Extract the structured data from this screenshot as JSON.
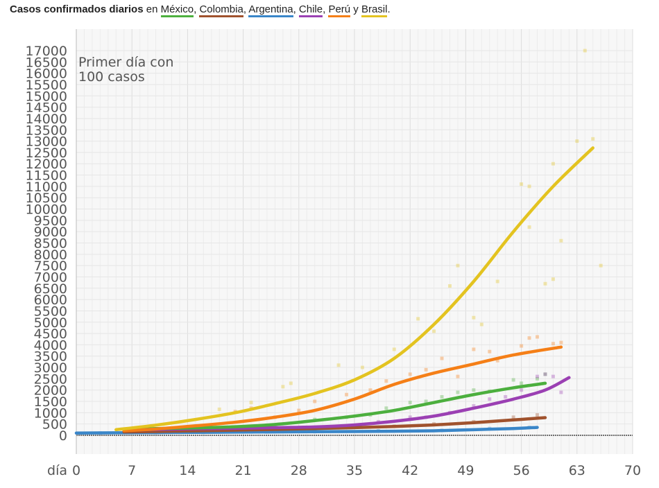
{
  "title": {
    "bold": "Casos confirmados diarios",
    "en": "en",
    "y": "y",
    "countries": [
      {
        "name": "México",
        "color": "#4caf3e"
      },
      {
        "name": "Colombia",
        "color": "#a0522d"
      },
      {
        "name": "Argentina",
        "color": "#3a86c8"
      },
      {
        "name": "Chile",
        "color": "#9b40b3"
      },
      {
        "name": "Perú",
        "color": "#f57f17"
      },
      {
        "name": "Brasil",
        "color": "#e3c320"
      }
    ]
  },
  "chart_data": {
    "type": "line",
    "annotation": "Primer día con\n100 casos",
    "xlabel_prefix": "día",
    "xlim": [
      0,
      70
    ],
    "ylim": [
      0,
      17000
    ],
    "x_ticks": [
      0,
      7,
      14,
      21,
      28,
      35,
      42,
      49,
      56,
      63,
      70
    ],
    "y_ticks": [
      0,
      500,
      1000,
      1500,
      2000,
      2500,
      3000,
      3500,
      4000,
      4500,
      5000,
      5500,
      6000,
      6500,
      7000,
      7500,
      8000,
      8500,
      9000,
      9500,
      10000,
      10500,
      11000,
      11500,
      12000,
      12500,
      13000,
      13500,
      14000,
      14500,
      15000,
      15500,
      16000,
      16500,
      17000
    ],
    "series": [
      {
        "name": "Brasil",
        "color": "#e3c320",
        "x": [
          5,
          10,
          15,
          20,
          25,
          30,
          35,
          40,
          45,
          50,
          55,
          60,
          65
        ],
        "y": [
          250,
          450,
          700,
          1000,
          1400,
          1850,
          2450,
          3400,
          4900,
          6800,
          9000,
          11000,
          12700
        ]
      },
      {
        "name": "Perú",
        "color": "#f57f17",
        "x": [
          6,
          10,
          15,
          20,
          25,
          30,
          35,
          40,
          45,
          50,
          55,
          61
        ],
        "y": [
          200,
          280,
          420,
          580,
          800,
          1100,
          1600,
          2250,
          2750,
          3150,
          3550,
          3900
        ]
      },
      {
        "name": "México",
        "color": "#4caf3e",
        "x": [
          6,
          10,
          15,
          20,
          25,
          30,
          35,
          40,
          45,
          50,
          55,
          59
        ],
        "y": [
          250,
          300,
          330,
          380,
          480,
          650,
          850,
          1100,
          1450,
          1800,
          2100,
          2300
        ]
      },
      {
        "name": "Chile",
        "color": "#9b40b3",
        "x": [
          6,
          10,
          15,
          20,
          25,
          30,
          35,
          40,
          45,
          50,
          55,
          59,
          62
        ],
        "y": [
          220,
          260,
          290,
          310,
          340,
          370,
          460,
          620,
          850,
          1200,
          1600,
          2000,
          2550
        ]
      },
      {
        "name": "Colombia",
        "color": "#a0522d",
        "x": [
          6,
          10,
          15,
          20,
          25,
          30,
          35,
          40,
          45,
          50,
          55,
          59
        ],
        "y": [
          150,
          170,
          200,
          230,
          260,
          300,
          340,
          390,
          460,
          560,
          680,
          780
        ]
      },
      {
        "name": "Argentina",
        "color": "#3a86c8",
        "x": [
          0,
          5,
          10,
          15,
          20,
          25,
          30,
          35,
          40,
          45,
          50,
          55,
          58
        ],
        "y": [
          100,
          110,
          120,
          130,
          140,
          150,
          160,
          170,
          180,
          200,
          250,
          300,
          350
        ]
      }
    ],
    "scatter": [
      {
        "color": "#e3c320",
        "points": [
          [
            18,
            1150
          ],
          [
            22,
            1450
          ],
          [
            26,
            2150
          ],
          [
            27,
            2300
          ],
          [
            33,
            3100
          ],
          [
            36,
            3000
          ],
          [
            40,
            3800
          ],
          [
            43,
            5150
          ],
          [
            45,
            4600
          ],
          [
            47,
            6600
          ],
          [
            48,
            7500
          ],
          [
            50,
            5200
          ],
          [
            51,
            4900
          ],
          [
            53,
            6800
          ],
          [
            56,
            11100
          ],
          [
            57,
            11000
          ],
          [
            57,
            9200
          ],
          [
            59,
            6700
          ],
          [
            60,
            6900
          ],
          [
            60,
            12000
          ],
          [
            61,
            8600
          ],
          [
            63,
            13000
          ],
          [
            64,
            17000
          ],
          [
            65,
            13100
          ],
          [
            66,
            7500
          ]
        ]
      },
      {
        "color": "#f57f17",
        "points": [
          [
            20,
            1050
          ],
          [
            22,
            1200
          ],
          [
            25,
            800
          ],
          [
            28,
            1100
          ],
          [
            30,
            1500
          ],
          [
            34,
            1800
          ],
          [
            37,
            2000
          ],
          [
            39,
            2400
          ],
          [
            42,
            2700
          ],
          [
            44,
            2900
          ],
          [
            46,
            3400
          ],
          [
            48,
            2600
          ],
          [
            50,
            3800
          ],
          [
            52,
            3700
          ],
          [
            53,
            3300
          ],
          [
            56,
            3950
          ],
          [
            57,
            4300
          ],
          [
            58,
            4350
          ],
          [
            60,
            4050
          ],
          [
            61,
            4100
          ]
        ]
      },
      {
        "color": "#4caf3e",
        "points": [
          [
            30,
            700
          ],
          [
            34,
            800
          ],
          [
            37,
            900
          ],
          [
            39,
            1200
          ],
          [
            42,
            1450
          ],
          [
            44,
            1500
          ],
          [
            46,
            1700
          ],
          [
            48,
            1900
          ],
          [
            50,
            2000
          ],
          [
            52,
            1950
          ],
          [
            55,
            2450
          ],
          [
            56,
            2300
          ],
          [
            58,
            2500
          ],
          [
            59,
            2700
          ]
        ]
      },
      {
        "color": "#9b40b3",
        "points": [
          [
            38,
            600
          ],
          [
            42,
            800
          ],
          [
            44,
            800
          ],
          [
            47,
            1000
          ],
          [
            50,
            1300
          ],
          [
            52,
            1600
          ],
          [
            54,
            1700
          ],
          [
            56,
            2000
          ],
          [
            58,
            2600
          ],
          [
            59,
            2700
          ],
          [
            60,
            2600
          ],
          [
            61,
            1900
          ]
        ]
      },
      {
        "color": "#a0522d",
        "points": [
          [
            30,
            300
          ],
          [
            35,
            350
          ],
          [
            40,
            400
          ],
          [
            45,
            500
          ],
          [
            50,
            600
          ],
          [
            55,
            800
          ],
          [
            58,
            900
          ]
        ]
      },
      {
        "color": "#3a86c8",
        "points": [
          [
            3,
            100
          ],
          [
            10,
            120
          ],
          [
            16,
            130
          ],
          [
            22,
            150
          ],
          [
            30,
            160
          ],
          [
            38,
            200
          ],
          [
            46,
            220
          ],
          [
            52,
            300
          ],
          [
            57,
            350
          ]
        ]
      }
    ]
  }
}
